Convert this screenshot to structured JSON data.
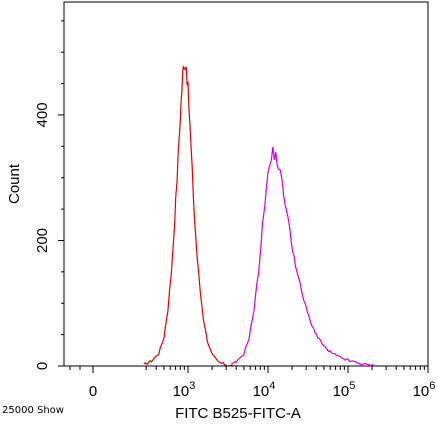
{
  "chart_data": {
    "type": "line",
    "xlabel": "FITC B525-FITC-A",
    "ylabel": "Count",
    "footer_text": "25000 Show",
    "x_axis_scale": "biexponential",
    "x_ticks": [
      {
        "label": "0",
        "value": 0
      },
      {
        "label": "10",
        "exp": "3",
        "value": 1000
      },
      {
        "label": "10",
        "exp": "4",
        "value": 10000
      },
      {
        "label": "10",
        "exp": "5",
        "value": 100000
      },
      {
        "label": "10",
        "exp": "6",
        "value": 1000000
      }
    ],
    "y_ticks": [
      {
        "label": "0",
        "value": 0
      },
      {
        "label": "200",
        "value": 200
      },
      {
        "label": "400",
        "value": 400
      }
    ],
    "ylim": [
      0,
      580
    ],
    "grid": false,
    "series": [
      {
        "color": "#e00000",
        "x": [
          280,
          350,
          430,
          500,
          560,
          620,
          680,
          730,
          780,
          820,
          860,
          900,
          950,
          1000,
          1060,
          1130,
          1200,
          1300,
          1420,
          1560,
          1750,
          2000,
          2400,
          3000,
          3800
        ],
        "y": [
          2,
          8,
          20,
          45,
          90,
          150,
          230,
          300,
          370,
          420,
          465,
          485,
          480,
          440,
          380,
          310,
          240,
          175,
          120,
          75,
          40,
          18,
          6,
          2,
          0
        ]
      },
      {
        "color": "#d400d4",
        "x": [
          3500,
          4200,
          5000,
          5800,
          6700,
          7600,
          8500,
          9500,
          10500,
          11500,
          12500,
          13500,
          15000,
          17000,
          19500,
          23000,
          28000,
          34000,
          42000,
          55000,
          75000,
          100000,
          130000,
          170000,
          220000
        ],
        "y": [
          2,
          8,
          20,
          45,
          90,
          150,
          220,
          285,
          320,
          340,
          335,
          320,
          290,
          250,
          200,
          150,
          105,
          70,
          45,
          25,
          15,
          9,
          5,
          2,
          0
        ]
      }
    ]
  }
}
